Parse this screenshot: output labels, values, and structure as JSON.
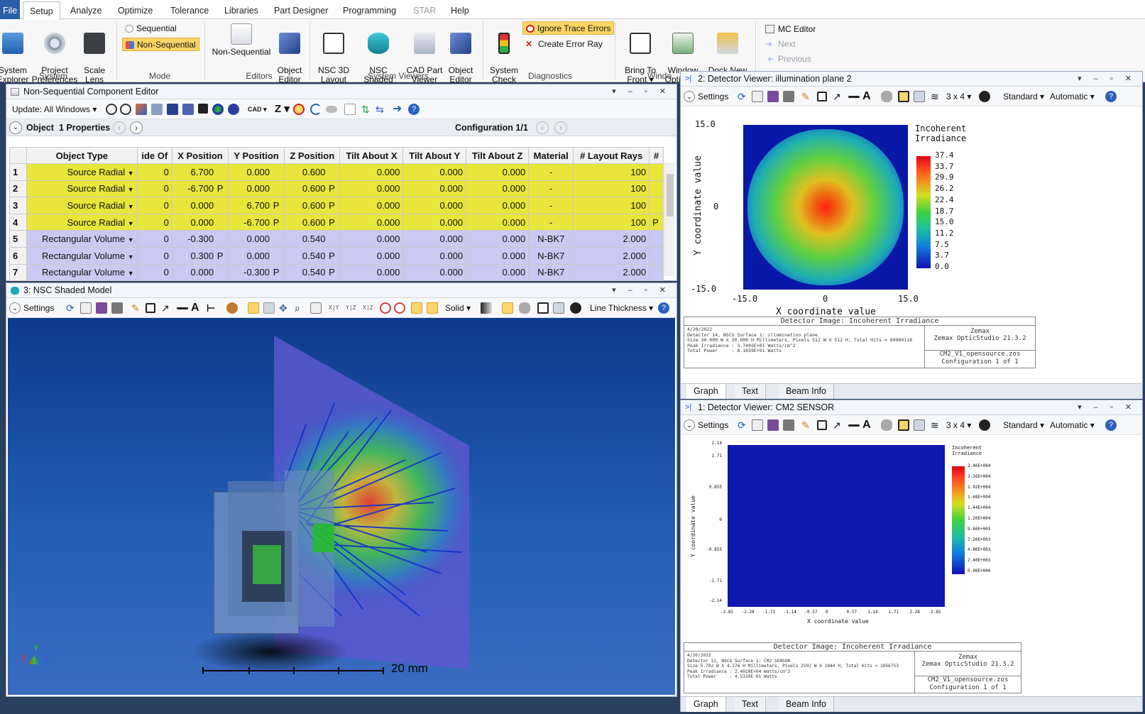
{
  "menu": {
    "file": "File",
    "setup": "Setup",
    "analyze": "Analyze",
    "optimize": "Optimize",
    "tolerance": "Tolerance",
    "libraries": "Libraries",
    "part_designer": "Part Designer",
    "programming": "Programming",
    "star": "STAR",
    "help": "Help"
  },
  "ribbon": {
    "system_explorer": "System\nExplorer",
    "project_preferences": "Project\nPreferences",
    "scale_lens": "Scale\nLens",
    "system_group": "System",
    "sequential": "Sequential",
    "non_sequential": "Non-Sequential",
    "mode_group": "Mode",
    "non_sequential_btn": "Non-Sequential",
    "object_editor": "Object\nEditor",
    "editors_group": "Editors",
    "nsc_3d_layout": "NSC 3D\nLayout",
    "nsc_shaded_model": "NSC Shaded\nModel",
    "cad_part_viewer": "CAD Part\nViewer",
    "object_editor2": "Object\nEditor",
    "system_viewers_group": "System Viewers",
    "system_check": "System\nCheck",
    "ignore_trace_errors": "Ignore Trace Errors",
    "create_error_ray": "Create Error Ray",
    "diagnostics_group": "Diagnostics",
    "bring_to_front": "Bring To\nFront ▾",
    "window_options": "Window\nOptions ▾",
    "dock_new_windows": "Dock New\nWindows",
    "window_group": "Windo",
    "mc_editor": "MC Editor",
    "next": "Next",
    "previous": "Previous"
  },
  "editor": {
    "title": "Non-Sequential Component Editor",
    "update": "Update: All Windows ▾",
    "cad": "CAD ▾",
    "z": "Z ▾",
    "object_label": "Object",
    "properties": "1 Properties",
    "configuration": "Configuration 1/1",
    "columns": [
      "",
      "Object Type",
      "ide Of",
      "X Position",
      "Y Position",
      "Z Position",
      "Tilt About X",
      "Tilt About Y",
      "Tilt About Z",
      "Material",
      "# Layout Rays",
      "#"
    ],
    "rows": [
      {
        "n": "1",
        "type": "Source Radial",
        "inside": "0",
        "x": "6.700",
        "xs": "",
        "y": "0.000",
        "ys": "",
        "z": "0.600",
        "zs": "",
        "tx": "0.000",
        "ty": "0.000",
        "tz": "0.000",
        "mat": "-",
        "rays": "100",
        "rs": "",
        "kind": "src"
      },
      {
        "n": "2",
        "type": "Source Radial",
        "inside": "0",
        "x": "-6.700",
        "xs": "P",
        "y": "0.000",
        "ys": "",
        "z": "0.600",
        "zs": "P",
        "tx": "0.000",
        "ty": "0.000",
        "tz": "0.000",
        "mat": "-",
        "rays": "100",
        "rs": "",
        "kind": "src"
      },
      {
        "n": "3",
        "type": "Source Radial",
        "inside": "0",
        "x": "0.000",
        "xs": "",
        "y": "6.700",
        "ys": "P",
        "z": "0.600",
        "zs": "P",
        "tx": "0.000",
        "ty": "0.000",
        "tz": "0.000",
        "mat": "-",
        "rays": "100",
        "rs": "",
        "kind": "src"
      },
      {
        "n": "4",
        "type": "Source Radial",
        "inside": "0",
        "x": "0.000",
        "xs": "",
        "y": "-6.700",
        "ys": "P",
        "z": "0.600",
        "zs": "P",
        "tx": "0.000",
        "ty": "0.000",
        "tz": "0.000",
        "mat": "-",
        "rays": "100",
        "rs": "P",
        "kind": "src"
      },
      {
        "n": "5",
        "type": "Rectangular Volume",
        "inside": "0",
        "x": "-0.300",
        "xs": "",
        "y": "0.000",
        "ys": "",
        "z": "0.540",
        "zs": "",
        "tx": "0.000",
        "ty": "0.000",
        "tz": "0.000",
        "mat": "N-BK7",
        "rays": "2.000",
        "rs": "",
        "kind": "vol"
      },
      {
        "n": "6",
        "type": "Rectangular Volume",
        "inside": "0",
        "x": "0.300",
        "xs": "P",
        "y": "0.000",
        "ys": "",
        "z": "0.540",
        "zs": "P",
        "tx": "0.000",
        "ty": "0.000",
        "tz": "0.000",
        "mat": "N-BK7",
        "rays": "2.000",
        "rs": "",
        "kind": "vol"
      },
      {
        "n": "7",
        "type": "Rectangular Volume",
        "inside": "0",
        "x": "0.000",
        "xs": "",
        "y": "-0.300",
        "ys": "P",
        "z": "0.540",
        "zs": "P",
        "tx": "0.000",
        "ty": "0.000",
        "tz": "0.000",
        "mat": "N-BK7",
        "rays": "2.000",
        "rs": "",
        "kind": "vol"
      }
    ]
  },
  "shaded": {
    "title": "3: NSC Shaded Model",
    "settings": "Settings",
    "solid": "Solid ▾",
    "line_thickness": "Line Thickness ▾",
    "scale_label": "20 mm",
    "axis_x": "X",
    "axis_y": "Y",
    "axis_z": "Z",
    "xy": "X|Y",
    "yz": "Y|Z",
    "xz": "X|Z"
  },
  "det2": {
    "title": "2: Detector Viewer: illumination plane 2",
    "settings": "Settings",
    "grid": "3 x 4 ▾",
    "standard": "Standard ▾",
    "automatic": "Automatic ▾",
    "legend_title": "Incoherent\nIrradiance",
    "legend": [
      "37.4",
      "33.7",
      "29.9",
      "26.2",
      "22.4",
      "18.7",
      "15.0",
      "11.2",
      "7.5",
      "3.7",
      "0.0"
    ],
    "xlabel": "X coordinate value",
    "ylabel": "Y coordinate value",
    "xticks": [
      "-15.0",
      "0",
      "15.0"
    ],
    "yticks": [
      "15.0",
      "0",
      "-15.0"
    ],
    "info_header": "Detector Image: Incoherent Irradiance",
    "info_lines": [
      "4/20/2022",
      "Detector 14, NSCG Surface 1: illumination plane",
      "Size 30.000 W X 30.000 H Millimeters, Pixels 512 W X 512 H, Total Hits = 89989118",
      "Peak Irradiance : 3.7402E+01 Watts/cm^2",
      "Total Power     : 8.1659E+01 Watts"
    ],
    "brand1": "Zemax",
    "brand2": "Zemax OpticStudio 21.3.2",
    "file": "CM2_V1_opensource.zos",
    "config": "Configuration 1 of 1",
    "tabs": [
      "Graph",
      "Text",
      "Beam Info"
    ]
  },
  "det1": {
    "title": "1: Detector Viewer: CM2 SENSOR",
    "settings": "Settings",
    "grid": "3 x 4 ▾",
    "standard": "Standard ▾",
    "automatic": "Automatic ▾",
    "legend_title": "Incoherent\nIrradiance",
    "legend": [
      "2.40E+004",
      "2.16E+004",
      "1.92E+004",
      "1.68E+004",
      "1.44E+004",
      "1.20E+004",
      "9.60E+003",
      "7.20E+003",
      "4.80E+003",
      "2.40E+003",
      "0.00E+000"
    ],
    "xlabel": "X coordinate value",
    "ylabel": "Y coordinate value",
    "xticks": [
      "-2.85",
      "-2.28",
      "-1.71",
      "-1.14",
      "-0.57",
      "0",
      "0.57",
      "1.14",
      "1.71",
      "2.28",
      "2.85"
    ],
    "yticks": [
      "2.14",
      "1.71",
      "0.855",
      "0",
      "-0.855",
      "-1.71",
      "-2.14"
    ],
    "info_header": "Detector Image: Incoherent Irradiance",
    "info_lines": [
      "4/20/2022",
      "Detector 11, NSCG Surface 1: CM2 SENSOR",
      "Size 5.702 W X 4.276 H Millimeters, Pixels 2592 W X 1944 H, Total Hits = 1056753",
      "Peak Irradiance : 2.4010E+04 Watts/cm^2",
      "Total Power     : 4.5310E-01 Watts"
    ],
    "brand1": "Zemax",
    "brand2": "Zemax OpticStudio 21.3.2",
    "file": "CM2_V1_opensource.zos",
    "config": "Configuration 1 of 1",
    "tabs": [
      "Graph",
      "Text",
      "Beam Info"
    ]
  },
  "colors": {
    "accent": "#2a5fa8",
    "source_row": "#e8e63a",
    "volume_row": "#c9c9f2",
    "viewport": "#1f56a8"
  }
}
